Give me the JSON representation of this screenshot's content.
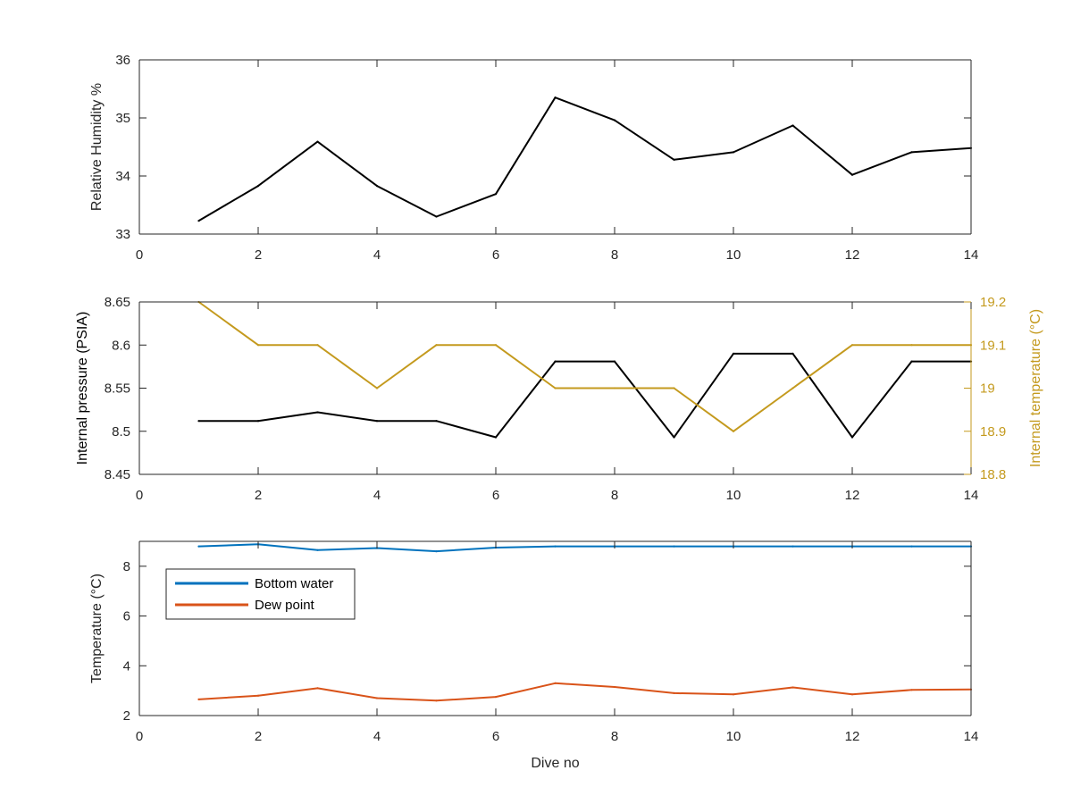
{
  "chart_data": [
    {
      "type": "line",
      "xlim": [
        0,
        14
      ],
      "ylim": [
        33,
        36
      ],
      "xticks": [
        0,
        2,
        4,
        6,
        8,
        10,
        12,
        14
      ],
      "yticks": [
        33,
        34,
        35,
        36
      ],
      "xlabel": "",
      "ylabel": "Relative Humidity %",
      "series": [
        {
          "color": "#000000",
          "x": [
            1,
            2,
            3,
            4,
            5,
            6,
            7,
            8,
            9,
            10,
            11,
            12,
            13,
            14
          ],
          "values": [
            33.23,
            33.83,
            34.59,
            33.83,
            33.3,
            33.69,
            35.35,
            34.96,
            34.28,
            34.41,
            34.87,
            34.02,
            34.41,
            34.48
          ]
        }
      ]
    },
    {
      "type": "line",
      "xlim": [
        0,
        14
      ],
      "ylim": [
        8.45,
        8.65
      ],
      "y2lim": [
        18.8,
        19.2
      ],
      "xticks": [
        0,
        2,
        4,
        6,
        8,
        10,
        12,
        14
      ],
      "yticks": [
        8.45,
        8.5,
        8.55,
        8.6,
        8.65
      ],
      "y2ticks": [
        18.8,
        18.9,
        19,
        19.1,
        19.2
      ],
      "xlabel": "",
      "ylabel": "Internal pressure (PSIA)",
      "y2label": "Internal temperature (°C)",
      "series": [
        {
          "axis": "left",
          "color": "#000000",
          "x": [
            1,
            2,
            3,
            4,
            5,
            6,
            7,
            8,
            9,
            10,
            11,
            12,
            13,
            14
          ],
          "values": [
            8.512,
            8.512,
            8.522,
            8.512,
            8.512,
            8.493,
            8.581,
            8.581,
            8.493,
            8.59,
            8.59,
            8.493,
            8.581,
            8.581
          ]
        },
        {
          "axis": "right",
          "color": "#C49A1E",
          "x": [
            1,
            2,
            3,
            4,
            5,
            6,
            7,
            8,
            9,
            10,
            11,
            12,
            13,
            14
          ],
          "values": [
            19.2,
            19.1,
            19.1,
            19.0,
            19.1,
            19.1,
            19.0,
            19.0,
            19.0,
            18.9,
            19.0,
            19.1,
            19.1,
            19.1
          ]
        }
      ]
    },
    {
      "type": "line",
      "xlim": [
        0,
        14
      ],
      "ylim": [
        2,
        9
      ],
      "xticks": [
        0,
        2,
        4,
        6,
        8,
        10,
        12,
        14
      ],
      "yticks": [
        2,
        4,
        6,
        8
      ],
      "xlabel": "Dive no",
      "ylabel": "Temperature (°C)",
      "legend": "top-left",
      "series": [
        {
          "name": "Bottom water",
          "color": "#0072BD",
          "x": [
            1,
            2,
            3,
            4,
            5,
            6,
            7,
            8,
            9,
            10,
            11,
            12,
            13,
            14
          ],
          "values": [
            8.8,
            8.88,
            8.65,
            8.73,
            8.6,
            8.75,
            8.8,
            8.8,
            8.8,
            8.8,
            8.8,
            8.8,
            8.8,
            8.8
          ]
        },
        {
          "name": "Dew point",
          "color": "#D95319",
          "x": [
            1,
            2,
            3,
            4,
            5,
            6,
            7,
            8,
            9,
            10,
            11,
            12,
            13,
            14
          ],
          "values": [
            2.65,
            2.8,
            3.1,
            2.7,
            2.6,
            2.75,
            3.3,
            3.15,
            2.9,
            2.85,
            3.13,
            2.85,
            3.03,
            3.05
          ]
        }
      ]
    }
  ]
}
